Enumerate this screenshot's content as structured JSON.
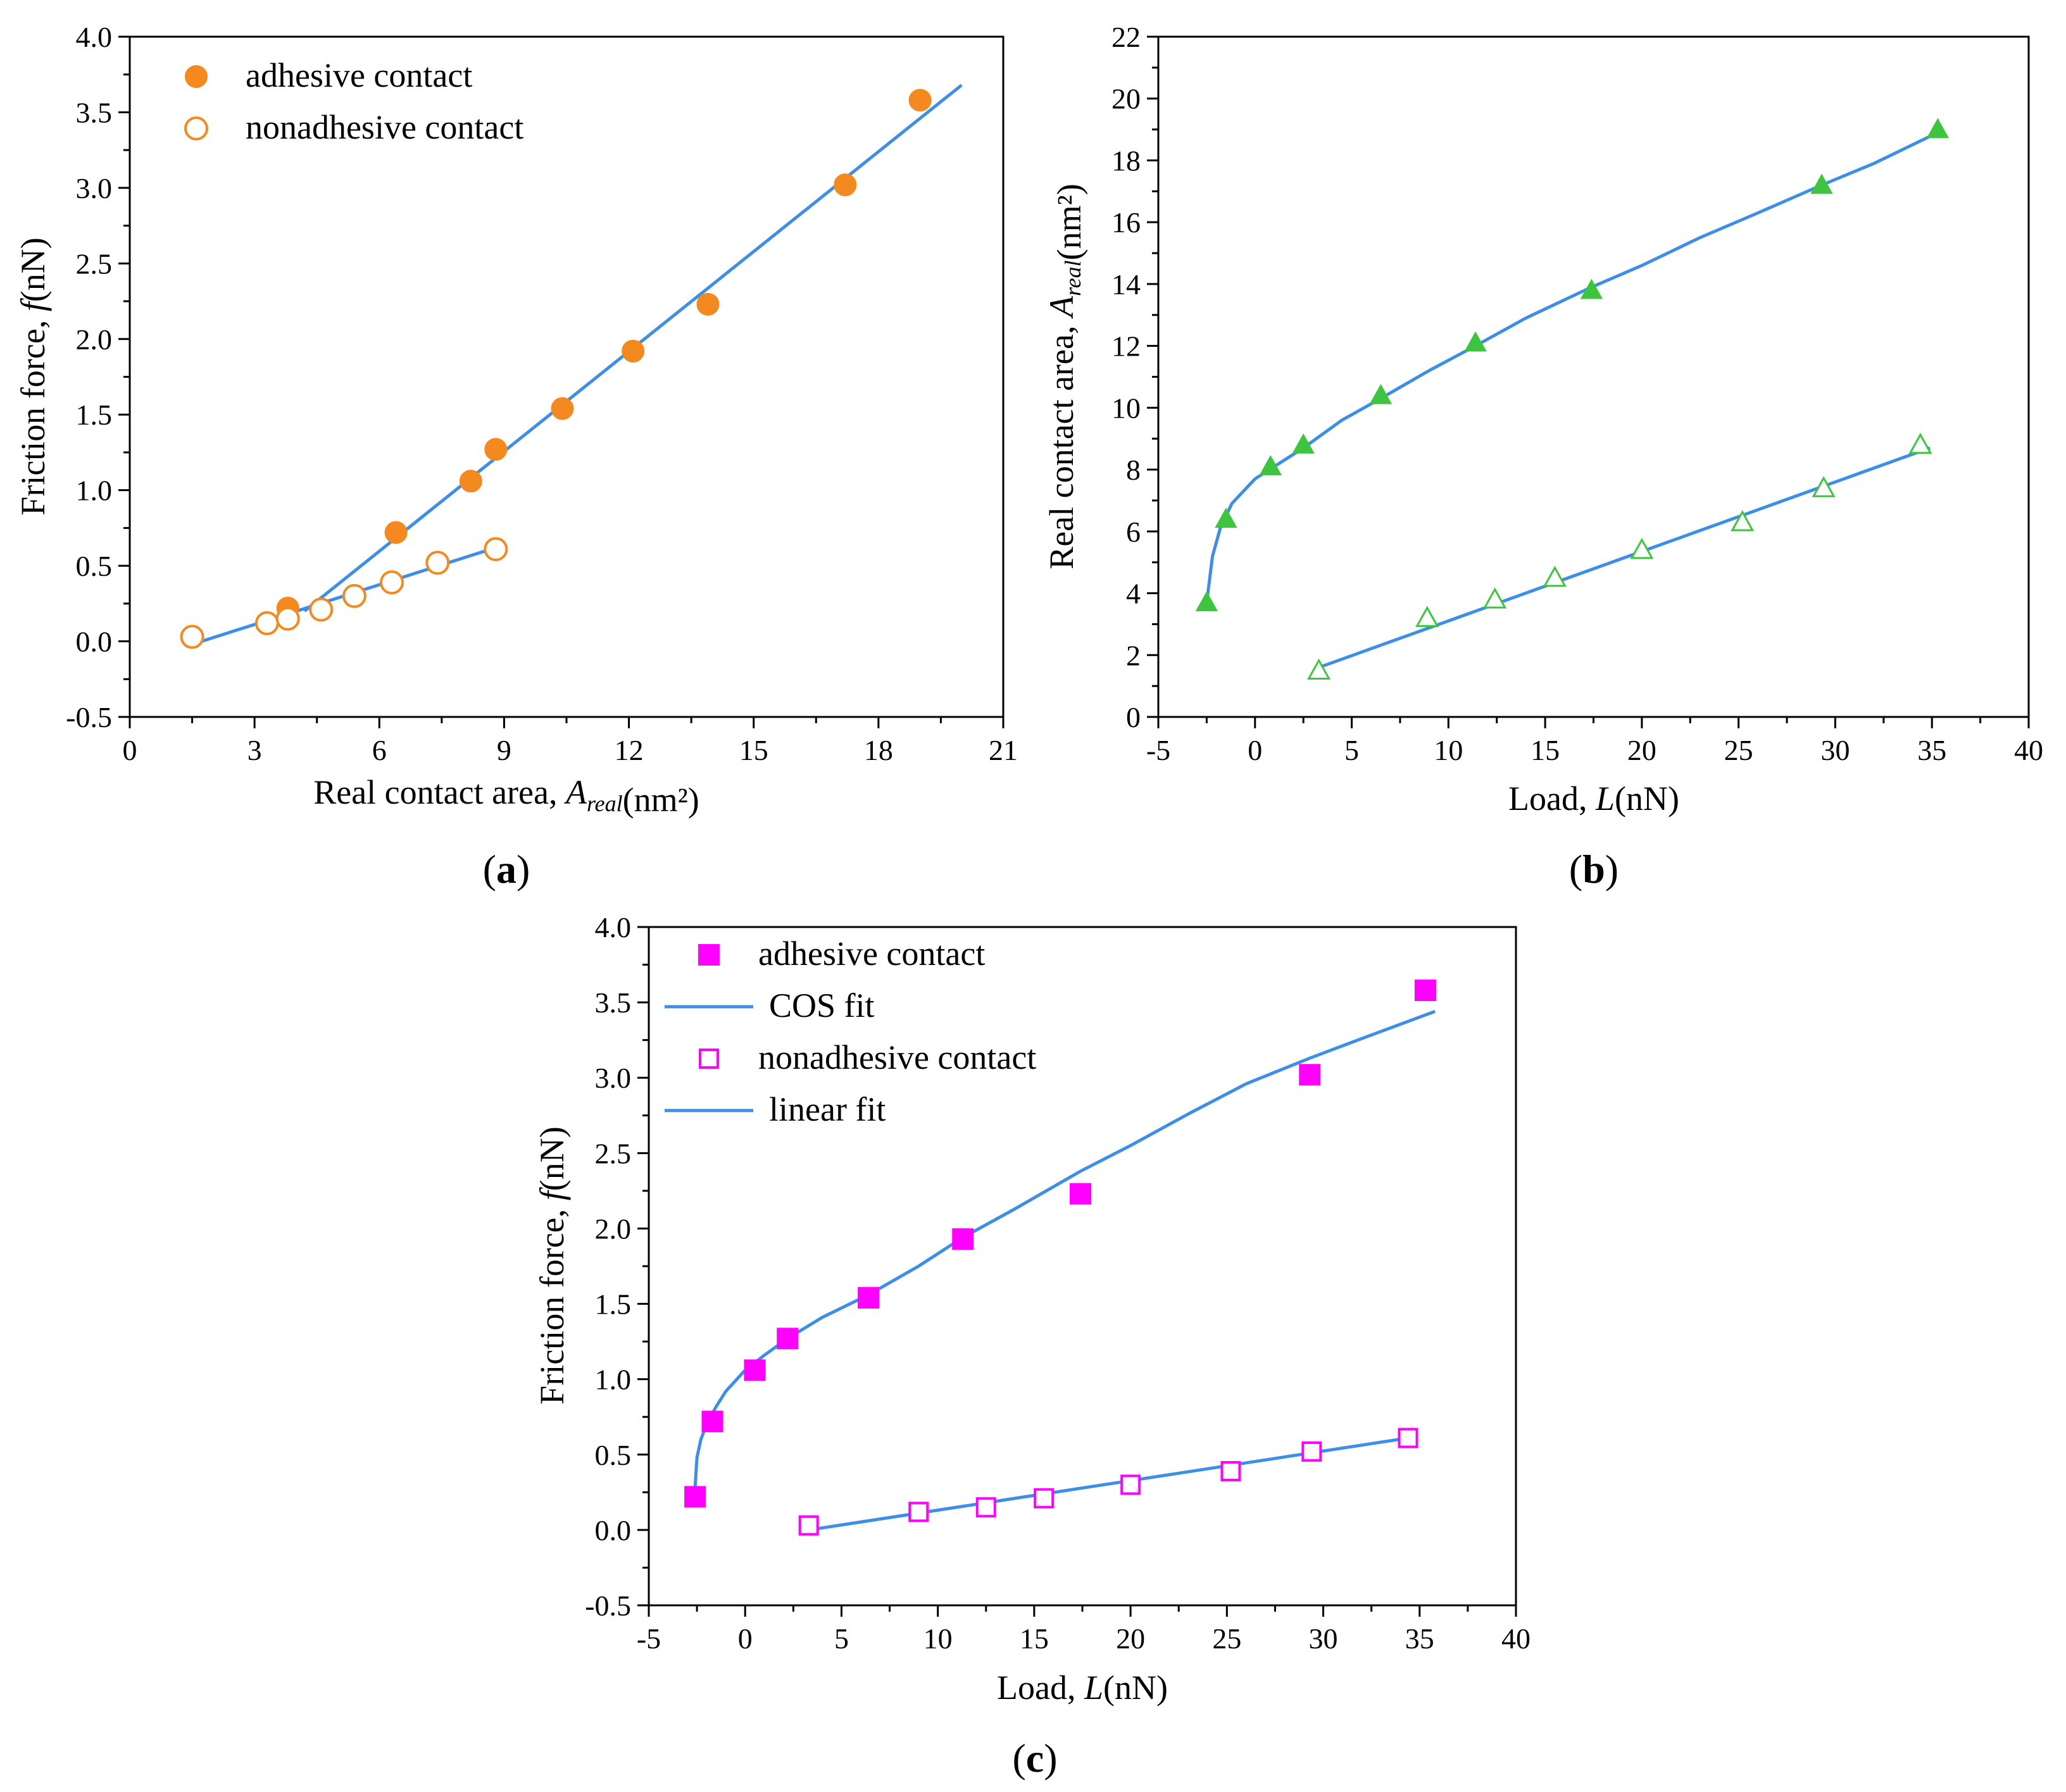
{
  "chart_data": [
    {
      "panel": "a",
      "type": "scatter",
      "panel_label": "(a)",
      "xlabel": "Real contact area,  A_real(nm²)",
      "ylabel": "Friction force,   f(nN)",
      "xlim": [
        0,
        21
      ],
      "ylim": [
        -0.5,
        4.0
      ],
      "xticks": [
        0,
        3,
        6,
        9,
        12,
        15,
        18,
        21
      ],
      "yticks": [
        -0.5,
        0.0,
        0.5,
        1.0,
        1.5,
        2.0,
        2.5,
        3.0,
        3.5,
        4.0
      ],
      "legend_position": "top-left",
      "color": "#f4891f",
      "fit_color": "#3d8ee6",
      "series": [
        {
          "name": "adhesive contact",
          "marker": "filled-circle",
          "x": [
            3.8,
            6.4,
            8.2,
            8.8,
            10.4,
            12.1,
            13.9,
            17.2,
            19.0
          ],
          "y": [
            0.22,
            0.72,
            1.06,
            1.27,
            1.54,
            1.92,
            2.23,
            3.02,
            3.58
          ]
        },
        {
          "name": "nonadhesive contact",
          "marker": "open-circle",
          "x": [
            1.5,
            3.3,
            3.8,
            4.6,
            5.4,
            6.3,
            7.4,
            8.8
          ],
          "y": [
            0.03,
            0.12,
            0.15,
            0.21,
            0.3,
            0.39,
            0.52,
            0.61
          ]
        }
      ],
      "fits": [
        {
          "name": "adhesive fit",
          "x": [
            4.2,
            20.0
          ],
          "y": [
            0.2,
            3.68
          ]
        },
        {
          "name": "nonadhesive fit",
          "x": [
            1.5,
            8.8
          ],
          "y": [
            -0.02,
            0.62
          ]
        }
      ]
    },
    {
      "panel": "b",
      "type": "scatter",
      "panel_label": "(b)",
      "xlabel": "Load, L(nN)",
      "ylabel": "Real contact area, A_real(nm²)",
      "xlim": [
        -5,
        40
      ],
      "ylim": [
        0,
        22
      ],
      "xticks": [
        -5,
        0,
        5,
        10,
        15,
        20,
        25,
        30,
        35,
        40
      ],
      "yticks": [
        0,
        2,
        4,
        6,
        8,
        10,
        12,
        14,
        16,
        18,
        20,
        22
      ],
      "color": "#3ec43e",
      "fit_color": "#3d8ee6",
      "series": [
        {
          "name": "adhesive contact",
          "marker": "filled-triangle",
          "x": [
            -2.5,
            -1.5,
            0.8,
            2.5,
            6.5,
            11.4,
            17.4,
            29.3,
            35.3
          ],
          "y": [
            3.7,
            6.4,
            8.1,
            8.8,
            10.4,
            12.1,
            13.8,
            17.2,
            19.0
          ]
        },
        {
          "name": "nonadhesive contact",
          "marker": "open-triangle",
          "x": [
            3.3,
            8.9,
            12.4,
            15.5,
            20.0,
            25.2,
            29.4,
            34.4
          ],
          "y": [
            1.5,
            3.2,
            3.8,
            4.5,
            5.4,
            6.3,
            7.4,
            8.8
          ]
        }
      ],
      "fits": [
        {
          "name": "adhesive fit",
          "x": [
            -2.5,
            -2.2,
            -1.8,
            -1.2,
            0,
            1,
            2.5,
            4.5,
            6.5,
            9,
            11.4,
            14,
            17.4,
            20,
            23,
            26,
            29.3,
            32,
            35.3
          ],
          "y": [
            3.7,
            5.2,
            6.1,
            6.9,
            7.7,
            8.1,
            8.7,
            9.6,
            10.3,
            11.2,
            12.0,
            12.9,
            13.9,
            14.6,
            15.5,
            16.3,
            17.2,
            17.9,
            18.9
          ]
        },
        {
          "name": "nonadhesive fit",
          "x": [
            3.3,
            34.9
          ],
          "y": [
            1.6,
            8.7
          ]
        }
      ]
    },
    {
      "panel": "c",
      "type": "scatter",
      "panel_label": "(c)",
      "xlabel": "Load,  L(nN)",
      "ylabel": "Friction force,   f(nN)",
      "xlim": [
        -5,
        40
      ],
      "ylim": [
        -0.5,
        4.0
      ],
      "xticks": [
        -5,
        0,
        5,
        10,
        15,
        20,
        25,
        30,
        35,
        40
      ],
      "yticks": [
        -0.5,
        0.0,
        0.5,
        1.0,
        1.5,
        2.0,
        2.5,
        3.0,
        3.5,
        4.0
      ],
      "legend_position": "top-left",
      "color": "#ff00ff",
      "fit_color": "#3d8ee6",
      "legend": [
        "adhesive contact",
        "COS fit",
        "nonadhesive contact",
        "linear fit"
      ],
      "series": [
        {
          "name": "adhesive contact",
          "marker": "filled-square",
          "x": [
            -2.6,
            -1.7,
            0.5,
            2.2,
            6.4,
            11.3,
            17.4,
            29.3,
            35.3
          ],
          "y": [
            0.22,
            0.72,
            1.06,
            1.27,
            1.54,
            1.93,
            2.23,
            3.02,
            3.58
          ]
        },
        {
          "name": "nonadhesive contact",
          "marker": "open-square",
          "x": [
            3.3,
            9.0,
            12.5,
            15.5,
            20.0,
            25.2,
            29.4,
            34.4
          ],
          "y": [
            0.03,
            0.12,
            0.15,
            0.21,
            0.3,
            0.39,
            0.52,
            0.61
          ]
        }
      ],
      "fits": [
        {
          "name": "COS fit",
          "x": [
            -2.6,
            -2.5,
            -2.3,
            -2.0,
            -1.5,
            -1.0,
            0,
            1,
            2.2,
            4,
            6.4,
            9,
            11.3,
            14,
            17.4,
            20,
            23,
            26,
            29.3,
            32,
            35.8
          ],
          "y": [
            0.28,
            0.48,
            0.6,
            0.7,
            0.82,
            0.92,
            1.06,
            1.16,
            1.27,
            1.41,
            1.56,
            1.75,
            1.94,
            2.13,
            2.38,
            2.55,
            2.76,
            2.96,
            3.13,
            3.26,
            3.44
          ]
        },
        {
          "name": "linear fit",
          "x": [
            3.3,
            34.4
          ],
          "y": [
            0.0,
            0.61
          ]
        }
      ]
    }
  ]
}
